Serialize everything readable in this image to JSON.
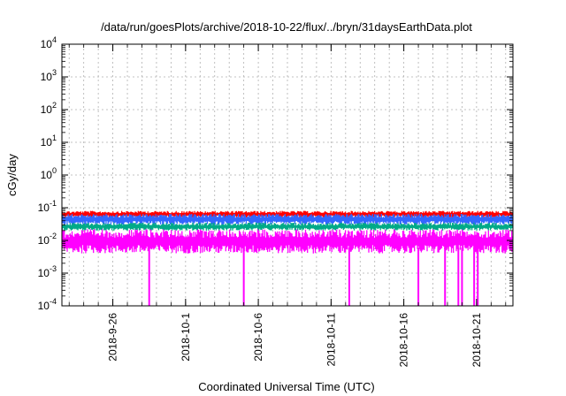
{
  "chart_data": {
    "type": "line",
    "title": "/data/run/goesPlots/archive/2018-10-22/flux/../bryn/31daysEarthData.plot",
    "xlabel": "Coordinated Universal Time (UTC)",
    "ylabel": "cGy/day",
    "yscale": "log",
    "ylim": [
      0.0001,
      10000
    ],
    "xlim": [
      "2018-09-22T12:00",
      "2018-10-23T12:00"
    ],
    "grid": true,
    "legend": "none",
    "yticks": [
      {
        "value": 0.0001,
        "base": "10",
        "exp": "-4"
      },
      {
        "value": 0.001,
        "base": "10",
        "exp": "-3"
      },
      {
        "value": 0.01,
        "base": "10",
        "exp": "-2"
      },
      {
        "value": 0.1,
        "base": "10",
        "exp": "-1"
      },
      {
        "value": 1,
        "base": "10",
        "exp": "0"
      },
      {
        "value": 10,
        "base": "10",
        "exp": "1"
      },
      {
        "value": 100,
        "base": "10",
        "exp": "2"
      },
      {
        "value": 1000,
        "base": "10",
        "exp": "3"
      },
      {
        "value": 10000,
        "base": "10",
        "exp": "4"
      }
    ],
    "xticks": [
      {
        "value": "2018-09-26",
        "label": "2018-9-26"
      },
      {
        "value": "2018-10-01",
        "label": "2018-10-1"
      },
      {
        "value": "2018-10-06",
        "label": "2018-10-6"
      },
      {
        "value": "2018-10-11",
        "label": "2018-10-11"
      },
      {
        "value": "2018-10-16",
        "label": "2018-10-16"
      },
      {
        "value": "2018-10-21",
        "label": "2018-10-21"
      }
    ],
    "series": [
      {
        "color": "#ff0000",
        "band": [
          0.05,
          0.08
        ]
      },
      {
        "color": "#3366ff",
        "band": [
          0.03,
          0.065
        ]
      },
      {
        "color": "#00aa88",
        "band": [
          0.02,
          0.035
        ]
      },
      {
        "color": "#ff00ff",
        "band": [
          0.004,
          0.022
        ]
      }
    ],
    "dropouts": [
      "2018-09-28T12:00",
      "2018-10-05T00:00",
      "2018-10-12T06:00",
      "2018-10-17T00:00",
      "2018-10-18T20:00",
      "2018-10-19T18:00",
      "2018-10-20T00:00",
      "2018-10-20T20:00",
      "2018-10-21T02:00"
    ]
  }
}
